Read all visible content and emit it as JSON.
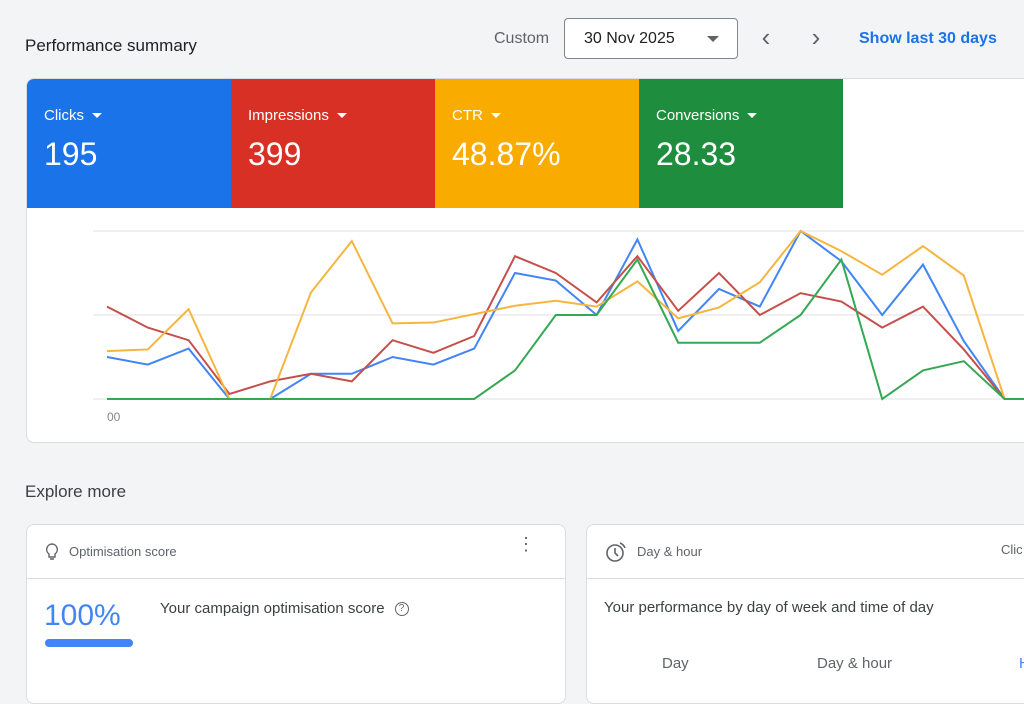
{
  "header": {
    "title": "Performance summary",
    "range_label": "Custom",
    "date": "30 Nov 2025",
    "show_last": "Show last 30 days"
  },
  "metrics": [
    {
      "label": "Clicks",
      "value": "195",
      "color": "#1a73e8"
    },
    {
      "label": "Impressions",
      "value": "399",
      "color": "#d93025"
    },
    {
      "label": "CTR",
      "value": "48.87%",
      "color": "#f9ab00"
    },
    {
      "label": "Conversions",
      "value": "28.33",
      "color": "#1e8e3e"
    }
  ],
  "chart_data": {
    "type": "line",
    "grid": true,
    "x_tick_labels": [
      "00"
    ],
    "ylim": [
      0,
      2
    ],
    "series": [
      {
        "metric": "Clicks",
        "color": "#4285f4",
        "values": [
          0.5,
          0.41,
          0.6,
          0,
          0,
          0.3,
          0.3,
          0.5,
          0.41,
          0.6,
          1.5,
          1.41,
          1.0,
          1.9,
          0.81,
          1.31,
          1.1,
          2.0,
          1.64,
          1.0,
          1.6,
          0.69,
          0,
          0
        ]
      },
      {
        "metric": "Impressions",
        "color": "#c5504b",
        "values": [
          1.1,
          0.85,
          0.7,
          0.06,
          0.21,
          0.3,
          0.21,
          0.7,
          0.55,
          0.75,
          1.7,
          1.5,
          1.15,
          1.7,
          1.05,
          1.5,
          1.0,
          1.26,
          1.16,
          0.85,
          1.1,
          0.59,
          0,
          0
        ]
      },
      {
        "metric": "CTR",
        "color": "#f4b63f",
        "values": [
          0.57,
          0.59,
          1.07,
          0,
          0,
          1.27,
          1.88,
          0.9,
          0.91,
          1.01,
          1.11,
          1.17,
          1.1,
          1.4,
          0.96,
          1.09,
          1.39,
          2.0,
          1.76,
          1.48,
          1.82,
          1.47,
          0,
          0
        ]
      },
      {
        "metric": "Conversions",
        "color": "#34a853",
        "values": [
          0,
          0,
          0,
          0,
          0,
          0,
          0,
          0,
          0,
          0,
          0.34,
          1.0,
          1.0,
          1.66,
          0.67,
          0.67,
          0.67,
          1.0,
          1.66,
          0,
          0.34,
          0.45,
          0,
          0
        ]
      }
    ]
  },
  "explore": {
    "title": "Explore more",
    "optimisation": {
      "header": "Optimisation score",
      "score": "100%",
      "score_fraction": 1.0,
      "label": "Your campaign optimisation score"
    },
    "dayhour": {
      "header": "Day & hour",
      "right_label": "Clic",
      "desc": "Your performance by day of week and time of day",
      "tabs": [
        "Day",
        "Day & hour",
        "H"
      ]
    }
  }
}
